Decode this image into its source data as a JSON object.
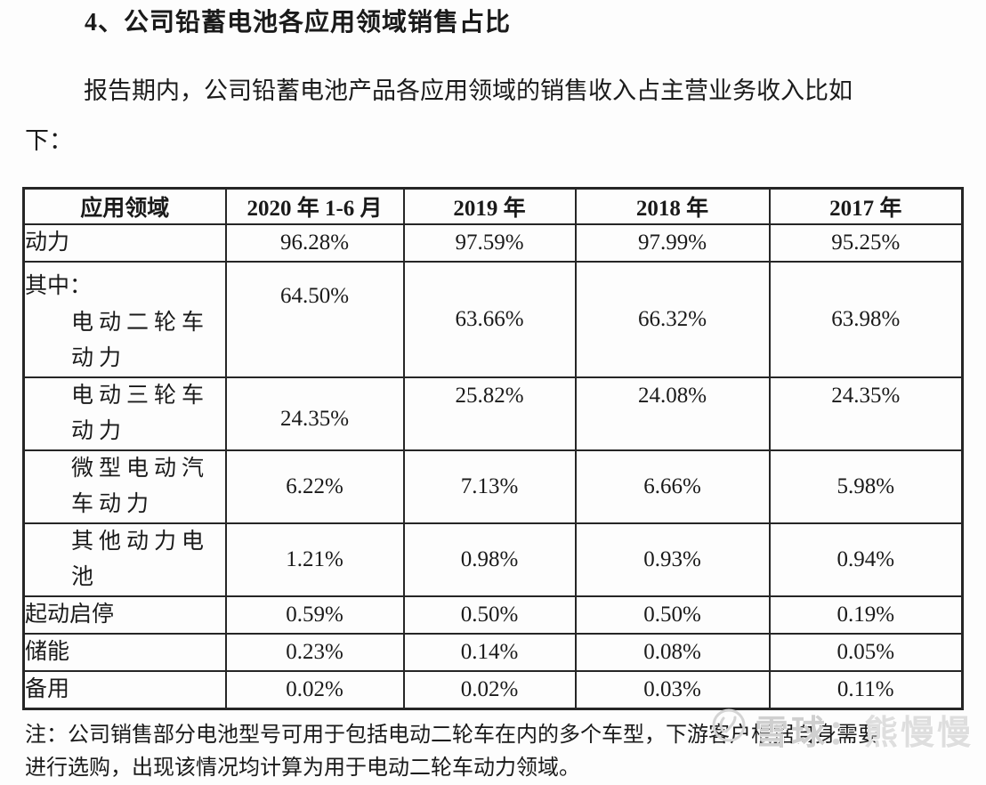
{
  "colors": {
    "background": "#fdfdfd",
    "text": "#1a1a1a",
    "table_border": "#262626",
    "watermark": "#d4d4d4"
  },
  "document": {
    "section_title": "4、公司铅蓄电池各应用领域销售占比",
    "intro_lines": [
      "报告期内，公司铅蓄电池产品各应用领域的销售收入占主营业务收入比如",
      "下："
    ],
    "note_lines": [
      "注：公司销售部分电池型号可用于包括电动二轮车在内的多个车型，下游客户根据自身需要",
      "进行选购，出现该情况均计算为用于电动二轮车动力领域。"
    ]
  },
  "table": {
    "headers": [
      "应用领域",
      "2020 年 1-6 月",
      "2019 年",
      "2018 年",
      "2017 年"
    ],
    "rows": [
      {
        "prefix": "",
        "label_lines": [
          "动力"
        ],
        "indent": false,
        "values": [
          "96.28%",
          "97.59%",
          "97.99%",
          "95.25%"
        ]
      },
      {
        "prefix": "其中：",
        "label_lines": [
          "电动二轮车",
          "动力"
        ],
        "indent": true,
        "values": [
          "64.50%",
          "63.66%",
          "66.32%",
          "63.98%"
        ]
      },
      {
        "prefix": "",
        "label_lines": [
          "电动三轮车",
          "动力"
        ],
        "indent": true,
        "values": [
          "24.35%",
          "25.82%",
          "24.08%",
          "24.35%"
        ]
      },
      {
        "prefix": "",
        "label_lines": [
          "微型电动汽",
          "车动力"
        ],
        "indent": true,
        "values": [
          "6.22%",
          "7.13%",
          "6.66%",
          "5.98%"
        ]
      },
      {
        "prefix": "",
        "label_lines": [
          "其他动力电",
          "池"
        ],
        "indent": true,
        "values": [
          "1.21%",
          "0.98%",
          "0.93%",
          "0.94%"
        ]
      },
      {
        "prefix": "",
        "label_lines": [
          "起动启停"
        ],
        "indent": false,
        "values": [
          "0.59%",
          "0.50%",
          "0.50%",
          "0.19%"
        ]
      },
      {
        "prefix": "",
        "label_lines": [
          "储能"
        ],
        "indent": false,
        "values": [
          "0.23%",
          "0.14%",
          "0.08%",
          "0.05%"
        ]
      },
      {
        "prefix": "",
        "label_lines": [
          "备用"
        ],
        "indent": false,
        "values": [
          "0.02%",
          "0.02%",
          "0.03%",
          "0.11%"
        ]
      }
    ]
  },
  "watermark": {
    "icon": "xueqiu-logo-icon",
    "site_label": "雪球",
    "separator": "：",
    "user_label": "熊慢慢"
  }
}
